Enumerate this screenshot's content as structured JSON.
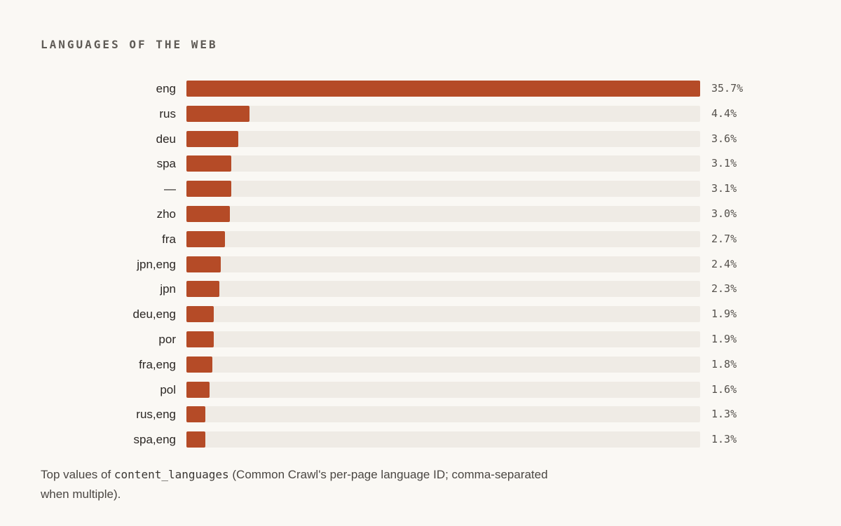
{
  "chart_data": {
    "type": "bar",
    "orientation": "horizontal",
    "title": "LANGUAGES OF THE WEB",
    "categories": [
      "eng",
      "rus",
      "deu",
      "spa",
      "—",
      "zho",
      "fra",
      "jpn,eng",
      "jpn",
      "deu,eng",
      "por",
      "fra,eng",
      "pol",
      "rus,eng",
      "spa,eng"
    ],
    "values": [
      35.7,
      4.4,
      3.6,
      3.1,
      3.1,
      3.0,
      2.7,
      2.4,
      2.3,
      1.9,
      1.9,
      1.8,
      1.6,
      1.3,
      1.3
    ],
    "value_labels": [
      "35.7%",
      "4.4%",
      "3.6%",
      "3.1%",
      "3.1%",
      "3.0%",
      "2.7%",
      "2.4%",
      "2.3%",
      "1.9%",
      "1.9%",
      "1.8%",
      "1.6%",
      "1.3%",
      "1.3%"
    ],
    "xlim": [
      0,
      35.7
    ],
    "grid": false,
    "colors": {
      "bar": "#b54b27",
      "track": "#efebe5"
    }
  },
  "caption": {
    "prefix": "Top values of ",
    "code": "content_languages",
    "suffix": " (Common Crawl's per-page language ID; comma-separated when multiple)."
  }
}
